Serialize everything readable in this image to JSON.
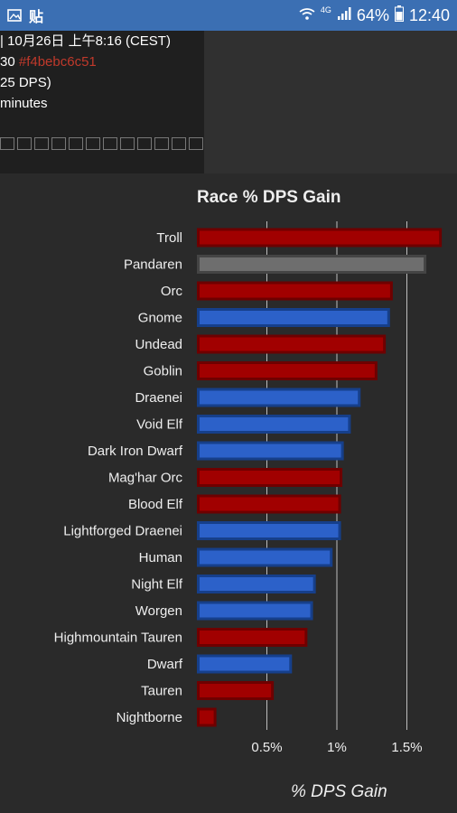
{
  "status_bar": {
    "left_icons": [
      "gallery-icon",
      "paste-icon"
    ],
    "paste_glyph": "贴",
    "network": "4G",
    "battery": "64%",
    "time": "12:40"
  },
  "top_panel": {
    "line1": "| 10月26日 上午8:16 (CEST)",
    "line2_prefix": "30 ",
    "line2_hash": "#f4bebc6c51",
    "line3": "25 DPS)",
    "line4": " minutes"
  },
  "colors": {
    "horde": "#b30000",
    "alliance": "#2d62c8",
    "neutral": "#6e6e6e"
  },
  "chart_data": {
    "type": "bar",
    "orientation": "horizontal",
    "title": "Race % DPS Gain",
    "xlabel": "% DPS Gain",
    "x_ticks": [
      "0.5%",
      "1%",
      "1.5%"
    ],
    "categories": [
      "Troll",
      "Pandaren",
      "Orc",
      "Gnome",
      "Undead",
      "Goblin",
      "Draenei",
      "Void Elf",
      "Dark Iron Dwarf",
      "Mag'har Orc",
      "Blood Elf",
      "Lightforged Draenei",
      "Human",
      "Night Elf",
      "Worgen",
      "Highmountain Tauren",
      "Dwarf",
      "Tauren",
      "Nightborne"
    ],
    "values": [
      1.73,
      1.62,
      1.38,
      1.36,
      1.33,
      1.27,
      1.15,
      1.08,
      1.03,
      1.02,
      1.01,
      1.01,
      0.95,
      0.83,
      0.81,
      0.77,
      0.66,
      0.53,
      0.12
    ],
    "faction": [
      "horde",
      "neutral",
      "horde",
      "alliance",
      "horde",
      "horde",
      "alliance",
      "alliance",
      "alliance",
      "horde",
      "horde",
      "alliance",
      "alliance",
      "alliance",
      "alliance",
      "horde",
      "alliance",
      "horde",
      "horde"
    ]
  }
}
